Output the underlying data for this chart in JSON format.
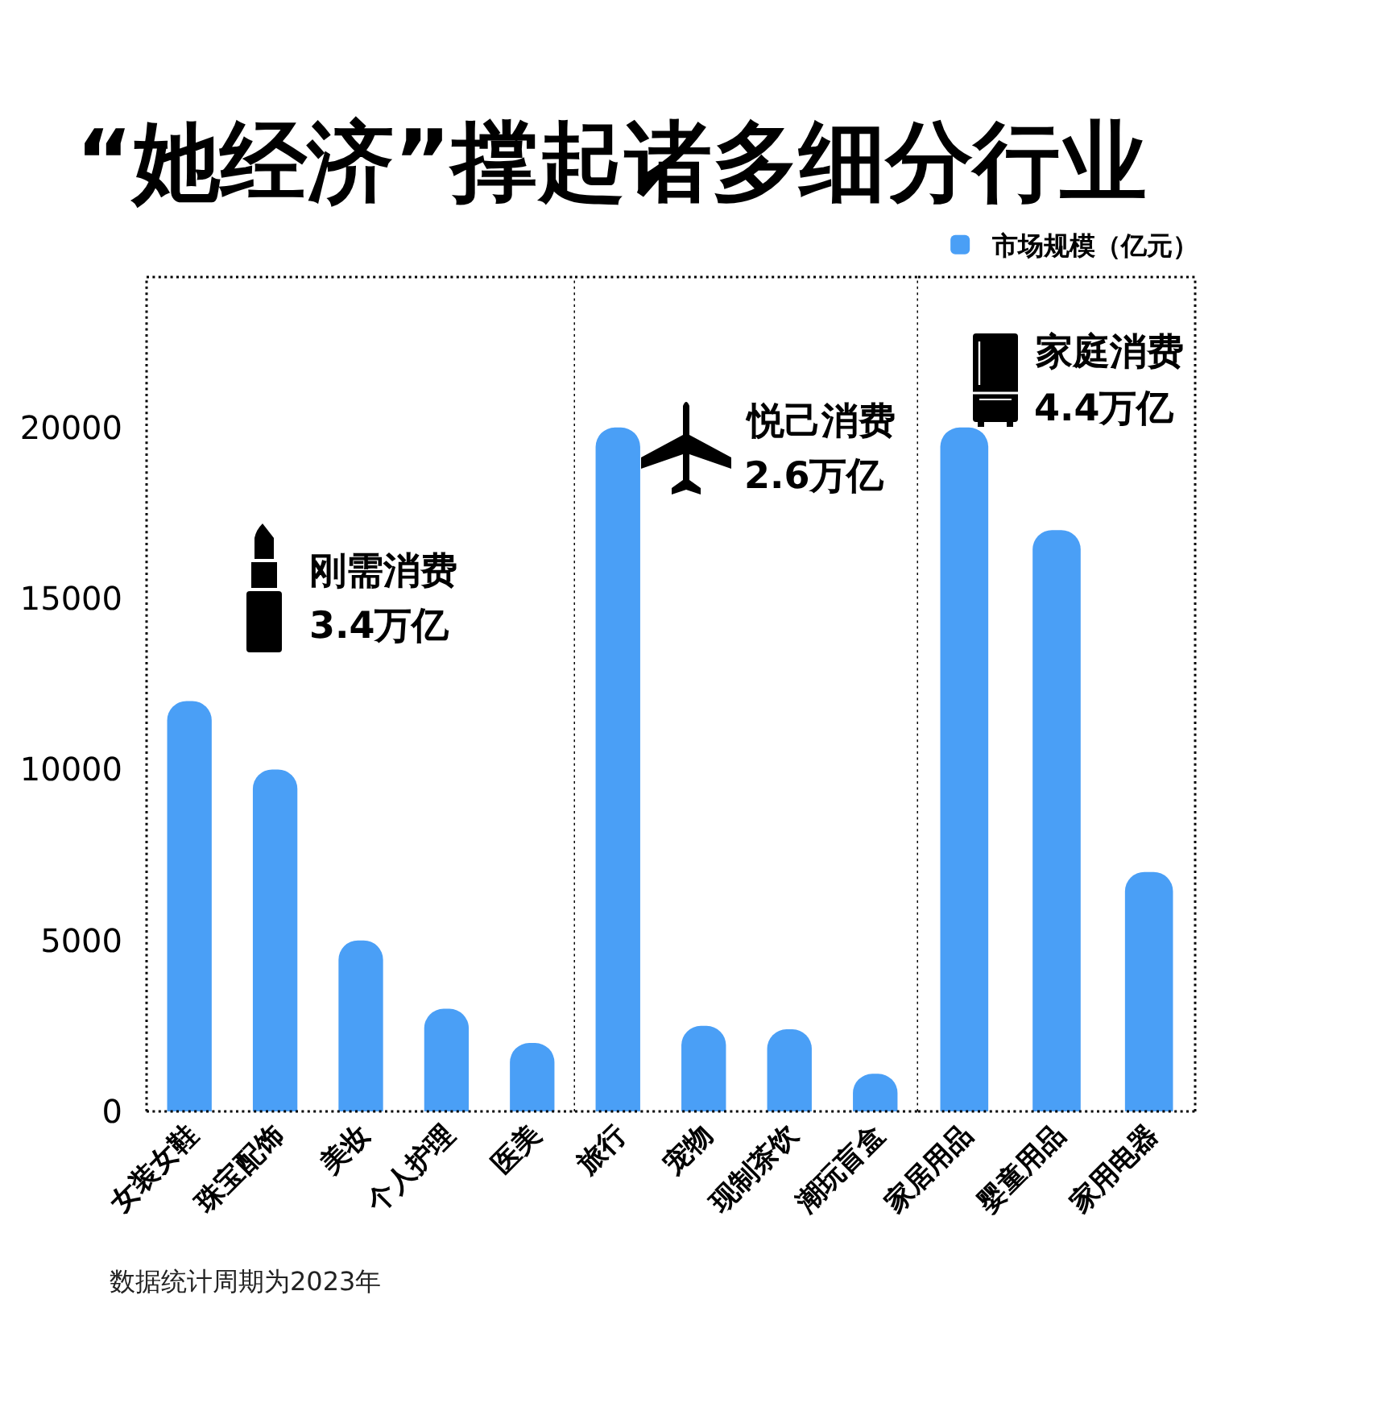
{
  "chart_data": [
    {
      "type": "bar",
      "title": "“她经济”撑起诸多细分行业",
      "categories": [
        "女装女鞋",
        "珠宝配饰",
        "美妆",
        "个人护理",
        "医美"
      ],
      "values": [
        12000,
        10000,
        5000,
        3000,
        2000
      ],
      "color": "#4a9ff6",
      "ylim": [
        0,
        24400
      ],
      "yticks": [
        0,
        5000,
        10000,
        15000,
        20000
      ],
      "annotations": [
        "刚需消费",
        "3.4万亿",
        "数据统计周期为2023年"
      ]
    },
    {
      "type": "bar",
      "categories": [
        "旅行",
        "宠物",
        "现制茶饮",
        "潮玩盲盒"
      ],
      "values": [
        20000,
        2500,
        2400,
        1100
      ],
      "color": "#4a9ff6",
      "ylim": [
        0,
        24400
      ],
      "tick_labels": "x",
      "annotations": [
        "悦己消费",
        "2.6万亿"
      ]
    },
    {
      "type": "bar",
      "categories": [
        "家居用品",
        "婴童用品",
        "家用电器"
      ],
      "series": [
        {
          "name": "市场规模（亿元）",
          "color": "#4a9ff6",
          "values": [
            20000,
            17000,
            7000
          ]
        }
      ],
      "ylim": [
        0,
        24400
      ],
      "tick_labels": "x",
      "legend": "top right",
      "annotations": [
        "家庭消费",
        "4.4万亿"
      ]
    }
  ]
}
